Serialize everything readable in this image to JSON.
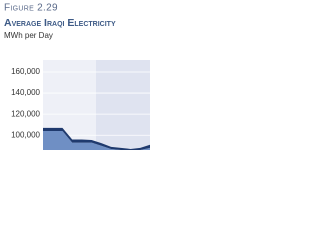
{
  "chart_data": {
    "type": "area",
    "figure": "Figure 2.29",
    "title": "Average Iraqi Electricity",
    "subtitle": "MWh per Day",
    "categories": [
      null,
      null,
      null,
      null,
      null,
      null,
      null,
      null,
      null,
      null,
      null,
      null
    ],
    "series": [
      {
        "color": "#6f8fc4",
        "values": [
          104000,
          104000,
          104000,
          93000,
          93000,
          93000,
          90000,
          87000,
          86000,
          85000,
          86000,
          88000
        ]
      },
      {
        "color": "#1f3a6e",
        "values": [
          3000,
          3000,
          3000,
          3000,
          3000,
          2500,
          2500,
          2000,
          2000,
          2000,
          2000,
          3000
        ]
      }
    ],
    "ylim": [
      86000,
      160000
    ],
    "yticks": [
      {
        "value": 100000,
        "label": "100,000"
      },
      {
        "value": 120000,
        "label": "120,000"
      },
      {
        "value": 140000,
        "label": "140,000"
      },
      {
        "value": 160000,
        "label": "160,000"
      }
    ],
    "grid": true
  }
}
